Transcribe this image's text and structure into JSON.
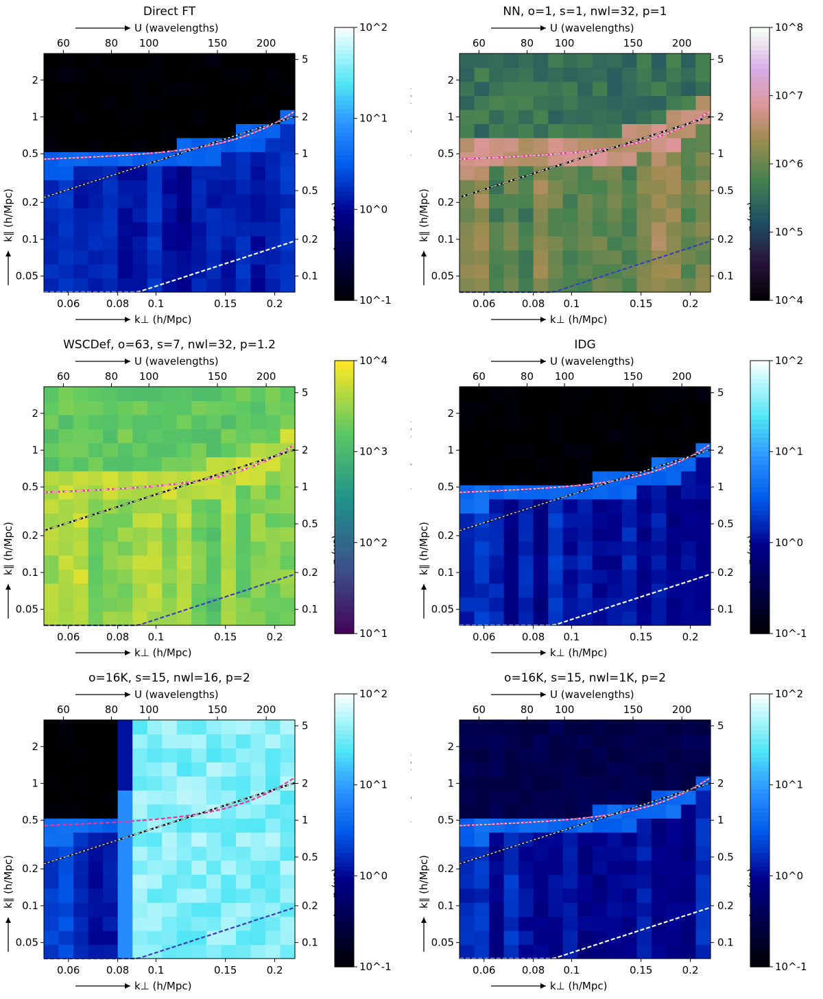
{
  "colors": {
    "pink_line": "#e8379a",
    "black_line": "#000000",
    "white_line": "#ffffff",
    "blue_line": "#3b3bbf"
  },
  "common_labels": {
    "u_label": "U (wavelengths)",
    "kperp_label": "k⊥ (h/Mpc)",
    "kpar_label": "k∥ (h/Mpc)",
    "eta_label": "η (μs)",
    "power_label": "Power (mK²[Mpc/h]³)",
    "u_ticks": [
      "60",
      "80",
      "100",
      "150",
      "200"
    ],
    "kperp_ticks": [
      "0.06",
      "0.08",
      "0.1",
      "0.15",
      "0.2"
    ],
    "kpar_ticks": [
      "2",
      "1",
      "0.5",
      "0.2",
      "0.1",
      "0.05"
    ],
    "eta_ticks": [
      "5",
      "2",
      "1",
      "0.5",
      "0.2",
      "0.1"
    ]
  },
  "chart_data": [
    {
      "type": "heatmap",
      "title": "Direct FT",
      "xlabel": "k⊥ (h/Mpc)",
      "ylabel": "k∥ (h/Mpc)",
      "x_range": [
        0.052,
        0.225
      ],
      "y_range": [
        0.037,
        3.3
      ],
      "colormap": "blue",
      "colorbar_ticks": [
        "10^2",
        "10^1",
        "10^0",
        "10^-1"
      ],
      "colorbar_range": [
        -1,
        2
      ],
      "floor_kpar": 0.58,
      "base_level": 0.15,
      "feature_level": 0.55,
      "upper_level": -1,
      "variation": 0.18,
      "lines": [
        {
          "name": "horizon-plus-buffer",
          "color": "pink",
          "style": "pink-white"
        },
        {
          "name": "horizon",
          "color": "black",
          "style": "black-white"
        },
        {
          "name": "lower-wedge",
          "color": "white",
          "style": "white"
        }
      ]
    },
    {
      "type": "heatmap",
      "title": "NN, o=1, s=1, nwl=32, p=1",
      "xlabel": "k⊥ (h/Mpc)",
      "ylabel": "k∥ (h/Mpc)",
      "x_range": [
        0.052,
        0.225
      ],
      "y_range": [
        0.037,
        3.3
      ],
      "colormap": "cubehelix",
      "colorbar_ticks": [
        "10^8",
        "10^7",
        "10^6",
        "10^5",
        "10^4"
      ],
      "colorbar_range": [
        4,
        8
      ],
      "base_level": 6.0,
      "feature_level": 6.7,
      "upper_level": 5.6,
      "variation": 0.4,
      "lines": [
        {
          "name": "horizon-plus-buffer",
          "color": "pink",
          "style": "pink-white"
        },
        {
          "name": "horizon",
          "color": "black",
          "style": "black-white"
        },
        {
          "name": "lower-wedge",
          "color": "blue",
          "style": "blue"
        }
      ]
    },
    {
      "type": "heatmap",
      "title": "WSCDef, o=63, s=7, nwl=32, p=1.2",
      "xlabel": "k⊥ (h/Mpc)",
      "ylabel": "k∥ (h/Mpc)",
      "x_range": [
        0.052,
        0.225
      ],
      "y_range": [
        0.037,
        3.3
      ],
      "colormap": "viridis",
      "colorbar_ticks": [
        "10^4",
        "10^3",
        "10^2",
        "10^1"
      ],
      "colorbar_range": [
        1,
        4
      ],
      "base_level": 3.45,
      "feature_level": 3.7,
      "upper_level": 3.25,
      "variation": 0.3,
      "lines": [
        {
          "name": "horizon-plus-buffer",
          "color": "pink",
          "style": "pink-white"
        },
        {
          "name": "horizon",
          "color": "black",
          "style": "black-white"
        },
        {
          "name": "lower-wedge",
          "color": "blue",
          "style": "blue"
        }
      ]
    },
    {
      "type": "heatmap",
      "title": "IDG",
      "xlabel": "k⊥ (h/Mpc)",
      "ylabel": "k∥ (h/Mpc)",
      "x_range": [
        0.052,
        0.225
      ],
      "y_range": [
        0.037,
        3.3
      ],
      "colormap": "blue",
      "colorbar_ticks": [
        "10^2",
        "10^1",
        "10^0",
        "10^-1"
      ],
      "colorbar_range": [
        -1,
        2
      ],
      "floor_kpar": 0.55,
      "base_level": 0.1,
      "feature_level": 0.6,
      "upper_level": -1,
      "variation": 0.2,
      "lines": [
        {
          "name": "horizon-plus-buffer",
          "color": "pink",
          "style": "pink-white"
        },
        {
          "name": "horizon",
          "color": "black",
          "style": "black-white"
        },
        {
          "name": "lower-wedge",
          "color": "white",
          "style": "white"
        }
      ]
    },
    {
      "type": "heatmap",
      "title": "o=16K, s=15, nwl=16, p=2",
      "xlabel": "k⊥ (h/Mpc)",
      "ylabel": "k∥ (h/Mpc)",
      "x_range": [
        0.052,
        0.225
      ],
      "y_range": [
        0.037,
        3.3
      ],
      "colormap": "blue",
      "colorbar_ticks": [
        "10^2",
        "10^1",
        "10^0",
        "10^-1"
      ],
      "colorbar_range": [
        -1,
        2
      ],
      "floor_kpar": 0.58,
      "base_level": 0.25,
      "feature_level": 0.6,
      "upper_level": -1,
      "variation": 0.18,
      "bright_region_kperp": 0.08,
      "bright_level": 1.6,
      "mid_region_kperp": 0.088,
      "lines": [
        {
          "name": "horizon-plus-buffer",
          "color": "pink",
          "style": "pink"
        },
        {
          "name": "horizon",
          "color": "black",
          "style": "black-white"
        },
        {
          "name": "lower-wedge",
          "color": "blue",
          "style": "blue"
        }
      ]
    },
    {
      "type": "heatmap",
      "title": "o=16K, s=15, nwl=1K, p=2",
      "xlabel": "k⊥ (h/Mpc)",
      "ylabel": "k∥ (h/Mpc)",
      "x_range": [
        0.052,
        0.225
      ],
      "y_range": [
        0.037,
        3.3
      ],
      "colormap": "blue",
      "colorbar_ticks": [
        "10^2",
        "10^1",
        "10^0",
        "10^-1"
      ],
      "colorbar_range": [
        -1,
        2
      ],
      "floor_kpar": 0.55,
      "base_level": 0.1,
      "feature_level": 0.6,
      "upper_level": -0.45,
      "variation": 0.2,
      "lines": [
        {
          "name": "horizon-plus-buffer",
          "color": "pink",
          "style": "pink-white"
        },
        {
          "name": "horizon",
          "color": "black",
          "style": "black-white"
        },
        {
          "name": "lower-wedge",
          "color": "white",
          "style": "white"
        }
      ]
    }
  ]
}
